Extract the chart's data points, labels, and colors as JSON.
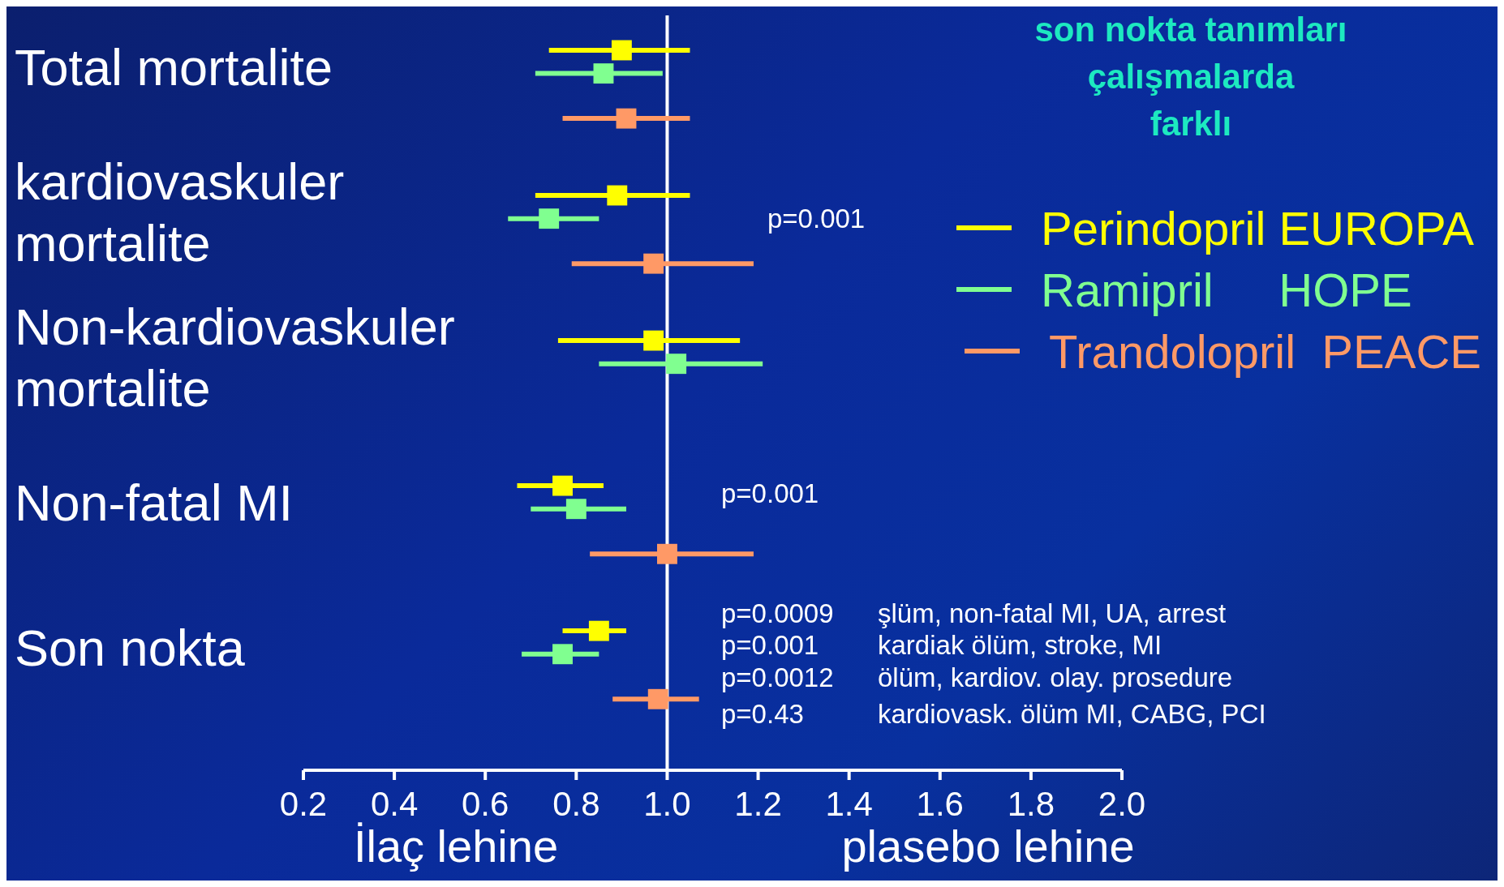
{
  "chart_data": {
    "type": "scatter",
    "orientation": "horizontal",
    "title": "son nokta tanımları\nçalışmalarda\nfarklı",
    "categories": [
      "Total mortalite",
      "kardiovaskuler mortalite",
      "Non-kardiovaskuler mortalite",
      "Non-fatal MI",
      "Son nokta"
    ],
    "series": [
      {
        "name": "Perindopril EUROPA",
        "color": "#ffff00",
        "values": [
          0.9,
          0.89,
          0.97,
          0.77,
          0.85
        ],
        "errors": [
          [
            0.74,
            1.05
          ],
          [
            0.71,
            1.05
          ],
          [
            0.76,
            1.16
          ],
          [
            0.67,
            0.86
          ],
          [
            0.77,
            0.91
          ]
        ]
      },
      {
        "name": "Ramipril     HOPE",
        "color": "#80ff90",
        "values": [
          0.86,
          0.74,
          1.02,
          0.8,
          0.77
        ],
        "errors": [
          [
            0.71,
            0.99
          ],
          [
            0.65,
            0.85
          ],
          [
            0.85,
            1.21
          ],
          [
            0.7,
            0.91
          ],
          [
            0.68,
            0.85
          ]
        ]
      },
      {
        "name": "Trandolopril  PEACE",
        "color": "#ff9966",
        "values": [
          0.91,
          0.97,
          null,
          1.0,
          0.98
        ],
        "errors": [
          [
            0.77,
            1.05
          ],
          [
            0.79,
            1.19
          ],
          null,
          [
            0.83,
            1.19
          ],
          [
            0.88,
            1.07
          ]
        ]
      }
    ],
    "xlim": [
      0.2,
      2.0
    ],
    "xticks": [
      0.2,
      0.4,
      0.6,
      0.8,
      {
        "value": 1,
        "label": "1.0"
      },
      1.2,
      1.4,
      1.6,
      1.8,
      {
        "value": 2,
        "label": "2.0"
      }
    ],
    "ref_lines": [
      {
        "axis": "x",
        "value": 1,
        "color": "#ffffff"
      }
    ],
    "marker": "square",
    "legend": "top right",
    "grid": false,
    "annotations": [
      "p=0.001",
      "p=0.001",
      "p=0.0009",
      "şlüm, non-fatal MI, UA, arrest",
      "p=0.001",
      "kardiak ölüm, stroke, MI",
      "p=0.0012",
      "ölüm, kardiov. olay. prosedure",
      "p=0.43",
      "kardiovask. ölüm MI, CABG, PCI",
      "İlaç lehine",
      "plasebo lehine"
    ]
  }
}
